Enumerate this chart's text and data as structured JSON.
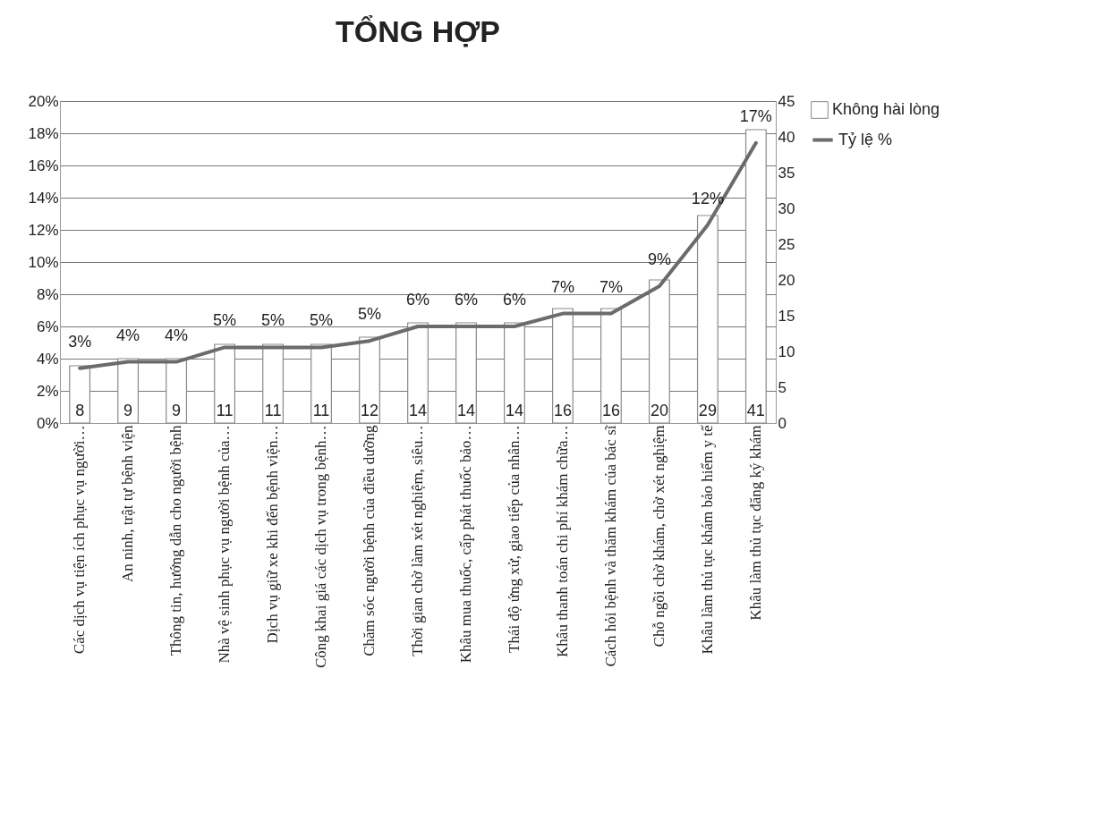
{
  "chart_data": {
    "type": "bar",
    "title": "TỔNG HỢP",
    "categories": [
      "Các dịch vụ tiện ích phục vụ người…",
      "An ninh, trật tự bệnh viện",
      "Thông tin, hướng dẫn cho người bệnh",
      "Nhà vệ sinh phục vụ người bệnh của…",
      "Dịch vụ giữ xe khi đến bệnh viện…",
      "Công khai giá các dịch vụ trong bệnh…",
      "Chăm sóc người bệnh của điều dưỡng",
      "Thời gian chờ làm xét nghiệm, siêu…",
      "Khâu mua thuốc, cấp phát thuốc bảo…",
      "Thái độ ứng xử, giao tiếp của nhân…",
      "Khâu thanh toán chi phí khám chữa…",
      "Cách hỏi bệnh và thăm khám của bác sĩ",
      "Chỗ ngồi chờ khám, chờ xét nghiệm",
      "Khâu làm thủ tục khám bảo hiểm y tế",
      "Khâu làm thủ tục đăng ký khám"
    ],
    "series": [
      {
        "name": "Không hài lòng",
        "axis": "y2",
        "color": "#ffffff",
        "values": [
          8,
          9,
          9,
          11,
          11,
          11,
          12,
          14,
          14,
          14,
          16,
          16,
          20,
          29,
          41
        ],
        "value_labels": [
          "8",
          "9",
          "9",
          "11",
          "11",
          "11",
          "12",
          "14",
          "14",
          "14",
          "16",
          "16",
          "20",
          "29",
          "41"
        ]
      },
      {
        "name": "Tỷ lệ %",
        "type": "line",
        "color": "#6b6b6b",
        "values": [
          3.4,
          3.8,
          3.8,
          4.7,
          4.7,
          4.7,
          5.1,
          6.0,
          6.0,
          6.0,
          6.8,
          6.8,
          8.5,
          12.3,
          17.4
        ],
        "value_labels": [
          "3%",
          "4%",
          "4%",
          "5%",
          "5%",
          "5%",
          "5%",
          "6%",
          "6%",
          "6%",
          "7%",
          "7%",
          "9%",
          "12%",
          "17%"
        ]
      }
    ],
    "ylim": [
      0,
      20
    ],
    "yticks": [
      {
        "value": 0,
        "label": "0%"
      },
      {
        "value": 2,
        "label": "2%"
      },
      {
        "value": 4,
        "label": "4%"
      },
      {
        "value": 6,
        "label": "6%"
      },
      {
        "value": 8,
        "label": "8%"
      },
      {
        "value": 10,
        "label": "10%"
      },
      {
        "value": 12,
        "label": "12%"
      },
      {
        "value": 14,
        "label": "14%"
      },
      {
        "value": 16,
        "label": "16%"
      },
      {
        "value": 18,
        "label": "18%"
      },
      {
        "value": 20,
        "label": "20%"
      }
    ],
    "y2lim": [
      0,
      45
    ],
    "y2ticks": [
      0,
      5,
      10,
      15,
      20,
      25,
      30,
      35,
      40,
      45
    ],
    "grid": "y",
    "legend": "right"
  }
}
